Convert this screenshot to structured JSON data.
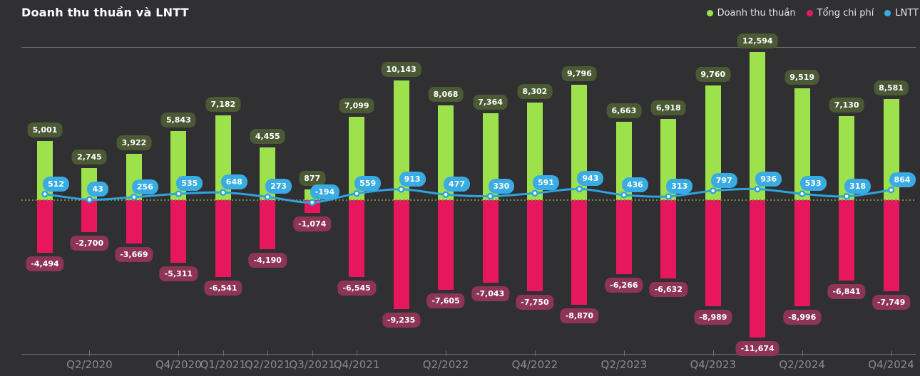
{
  "title": "Doanh thu thuần và LNTT",
  "legend": [
    {
      "label": "Doanh thu thuần",
      "color": "#9de24d"
    },
    {
      "label": "Tổng chi phí",
      "color": "#e6175d"
    },
    {
      "label": "LNTT",
      "color": "#39ace3"
    }
  ],
  "colors": {
    "background": "#303033",
    "revenue_bar": "#9de24d",
    "revenue_label_bg": "#4b5a34",
    "cost_bar": "#e6175d",
    "cost_label_bg": "#8e3556",
    "lntt_line": "#2ea4dc",
    "lntt_label_bg": "#39ace3",
    "zero_line": "#76883c",
    "gridline": "#7d7d82",
    "axis_text": "#8a8a8f"
  },
  "chart_data": {
    "type": "combo (bar + line)",
    "title": "Doanh thu thuần và LNTT",
    "ylim": [
      -13000,
      13000
    ],
    "baseline": 0,
    "grid": "top gridline and dotted zero baseline only",
    "legend_position": "top-right",
    "series": [
      {
        "name": "Doanh thu thuần",
        "type": "bar",
        "color": "#9de24d",
        "values": [
          5001,
          2745,
          3922,
          5843,
          7182,
          4455,
          877,
          7099,
          10143,
          8068,
          7364,
          8302,
          9796,
          6663,
          6918,
          9760,
          12594,
          9519,
          7130,
          8581
        ]
      },
      {
        "name": "Tổng chi phí",
        "type": "bar",
        "color": "#e6175d",
        "values": [
          -4494,
          -2700,
          -3669,
          -5311,
          -6541,
          -4190,
          -1074,
          -6545,
          -9235,
          -7605,
          -7043,
          -7750,
          -8870,
          -6266,
          -6632,
          -8989,
          -11674,
          -8996,
          -6841,
          -7749
        ]
      },
      {
        "name": "LNTT",
        "type": "line",
        "color": "#39ace3",
        "values": [
          512,
          43,
          256,
          535,
          648,
          273,
          -194,
          559,
          913,
          477,
          330,
          591,
          943,
          436,
          313,
          797,
          936,
          533,
          318,
          864
        ]
      }
    ],
    "x_ticks": [
      {
        "label": "Q2/2020",
        "index": 1
      },
      {
        "label": "Q4/2020",
        "index": 3
      },
      {
        "label": "Q1/2021",
        "index": 4
      },
      {
        "label": "Q2/2021",
        "index": 5
      },
      {
        "label": "Q3/2021",
        "index": 6
      },
      {
        "label": "Q4/2021",
        "index": 7
      },
      {
        "label": "Q2/2022",
        "index": 9
      },
      {
        "label": "Q4/2022",
        "index": 11
      },
      {
        "label": "Q2/2023",
        "index": 13
      },
      {
        "label": "Q4/2023",
        "index": 15
      },
      {
        "label": "Q2/2024",
        "index": 17
      },
      {
        "label": "Q4/2024",
        "index": 19
      }
    ]
  }
}
